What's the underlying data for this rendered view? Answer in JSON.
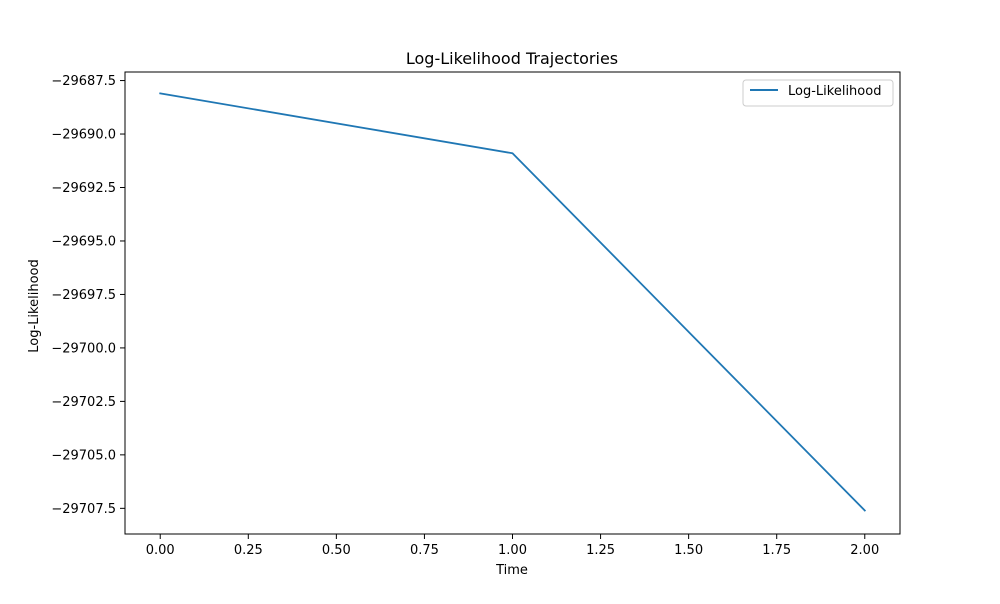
{
  "chart_data": {
    "type": "line",
    "title": "Log-Likelihood Trajectories",
    "xlabel": "Time",
    "ylabel": "Log-Likelihood",
    "x": [
      0,
      1,
      2
    ],
    "series": [
      {
        "name": "Log-Likelihood",
        "color": "#1f77b4",
        "values": [
          -29688.1,
          -29690.9,
          -29707.6
        ]
      }
    ],
    "xlim": [
      -0.1,
      2.1
    ],
    "ylim": [
      -29708.7,
      -29687.1
    ],
    "xticks": [
      {
        "value": 0.0,
        "label": "0.00"
      },
      {
        "value": 0.25,
        "label": "0.25"
      },
      {
        "value": 0.5,
        "label": "0.50"
      },
      {
        "value": 0.75,
        "label": "0.75"
      },
      {
        "value": 1.0,
        "label": "1.00"
      },
      {
        "value": 1.25,
        "label": "1.25"
      },
      {
        "value": 1.5,
        "label": "1.50"
      },
      {
        "value": 1.75,
        "label": "1.75"
      },
      {
        "value": 2.0,
        "label": "2.00"
      }
    ],
    "yticks": [
      {
        "value": -29687.5,
        "label": "−29687.5"
      },
      {
        "value": -29690.0,
        "label": "−29690.0"
      },
      {
        "value": -29692.5,
        "label": "−29692.5"
      },
      {
        "value": -29695.0,
        "label": "−29695.0"
      },
      {
        "value": -29697.5,
        "label": "−29697.5"
      },
      {
        "value": -29700.0,
        "label": "−29700.0"
      },
      {
        "value": -29702.5,
        "label": "−29702.5"
      },
      {
        "value": -29705.0,
        "label": "−29705.0"
      },
      {
        "value": -29707.5,
        "label": "−29707.5"
      }
    ],
    "grid": false,
    "legend_position": "top-right"
  }
}
